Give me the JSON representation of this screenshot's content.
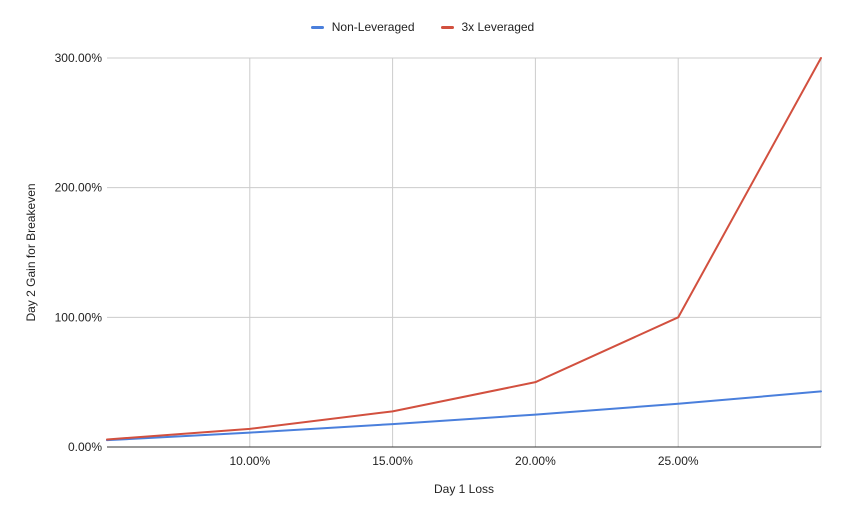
{
  "chart_data": {
    "type": "line",
    "title": "",
    "xlabel": "Day 1 Loss",
    "ylabel": "Day 2 Gain for Breakeven",
    "x": [
      5,
      10,
      15,
      20,
      25,
      30
    ],
    "xlim": [
      5,
      30
    ],
    "ylim": [
      0,
      300
    ],
    "x_ticks": [
      10,
      15,
      20,
      25
    ],
    "x_tick_labels": [
      "10.00%",
      "15.00%",
      "20.00%",
      "25.00%"
    ],
    "y_ticks": [
      0,
      100,
      200,
      300
    ],
    "y_tick_labels": [
      "0.00%",
      "100.00%",
      "200.00%",
      "300.00%"
    ],
    "grid": true,
    "legend_position": "top-center",
    "series": [
      {
        "name": "Non-Leveraged",
        "color": "#4a7fdc",
        "values": [
          5.26,
          11.11,
          17.65,
          25.0,
          33.33,
          42.86
        ]
      },
      {
        "name": "3x Leveraged",
        "color": "#d2503f",
        "values": [
          5.8,
          14.0,
          27.5,
          50.0,
          100.0,
          300.0
        ]
      }
    ]
  }
}
